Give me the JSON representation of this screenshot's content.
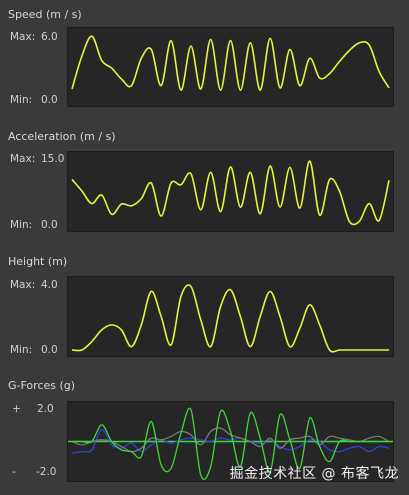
{
  "speed": {
    "title": "Speed (m / s)",
    "max_label": "Max:",
    "max_value": "6.0",
    "min_label": "Min:",
    "min_value": "0.0"
  },
  "acceleration": {
    "title": "Acceleration (m /  s)",
    "max_label": "Max:",
    "max_value": "15.0",
    "min_label": "Min:",
    "min_value": "0.0"
  },
  "height": {
    "title": "Height (m)",
    "max_label": "Max:",
    "max_value": "4.0",
    "min_label": "Min:",
    "min_value": "0.0"
  },
  "gforces": {
    "title": "G-Forces (g)",
    "plus_label": "+",
    "max_value": "2.0",
    "minus_label": "-",
    "min_value": "-2.0"
  },
  "watermark": "掘金技术社区 @ 布客飞龙",
  "colors": {
    "background": "#3a3a3a",
    "panel": "#262626",
    "line_primary": "#e6f53a",
    "gforce_green": "#3fd83a",
    "gforce_blue": "#2d43e0",
    "gforce_gray": "#7a7a7a"
  },
  "chart_data": [
    {
      "type": "line",
      "title": "Speed (m / s)",
      "ylim": [
        0,
        6.0
      ],
      "x": [
        0,
        10,
        20,
        30,
        40,
        50,
        60,
        70,
        80,
        90,
        100,
        110,
        120,
        130,
        140,
        150,
        160,
        170,
        180,
        190,
        200,
        210,
        220,
        230,
        240,
        250,
        260,
        270,
        280,
        290,
        300,
        310,
        320
      ],
      "series": [
        {
          "values": [
            1.0,
            4.0,
            5.8,
            3.6,
            2.9,
            1.9,
            1.3,
            3.8,
            4.6,
            1.3,
            5.4,
            0.9,
            4.9,
            1.0,
            5.5,
            0.9,
            5.4,
            0.9,
            5.2,
            0.9,
            5.6,
            1.1,
            4.6,
            1.3,
            3.8,
            2.0,
            2.4,
            3.5,
            4.5,
            5.2,
            5.0,
            2.6,
            1.1
          ]
        }
      ]
    },
    {
      "type": "line",
      "title": "Acceleration (m /  s)",
      "ylim": [
        0,
        15.0
      ],
      "x": [
        0,
        10,
        20,
        30,
        40,
        50,
        60,
        70,
        80,
        90,
        100,
        110,
        120,
        130,
        140,
        150,
        160,
        170,
        180,
        190,
        200,
        210,
        220,
        230,
        240,
        250,
        260,
        270,
        280,
        290,
        300,
        310,
        320
      ],
      "series": [
        {
          "values": [
            10.2,
            7.6,
            4.8,
            6.7,
            2.4,
            4.7,
            4.3,
            5.9,
            9.4,
            2.0,
            9.4,
            9.0,
            11.5,
            3.4,
            11.8,
            3.0,
            13.0,
            4.0,
            11.8,
            2.5,
            13.2,
            4.0,
            12.9,
            3.8,
            14.3,
            2.2,
            10.2,
            7.6,
            0.8,
            0.8,
            4.8,
            1.0,
            10.0
          ]
        }
      ]
    },
    {
      "type": "line",
      "title": "Height (m)",
      "ylim": [
        0,
        4.0
      ],
      "x": [
        0,
        10,
        20,
        30,
        40,
        50,
        60,
        70,
        80,
        90,
        100,
        110,
        120,
        130,
        140,
        150,
        160,
        170,
        180,
        190,
        200,
        210,
        220,
        230,
        240,
        250,
        260,
        270,
        280,
        290,
        300,
        310,
        320
      ],
      "series": [
        {
          "values": [
            0,
            0,
            0.5,
            1.2,
            1.5,
            1.2,
            0.2,
            1.5,
            3.5,
            2.0,
            0.3,
            3.2,
            3.8,
            1.8,
            0.2,
            2.6,
            3.6,
            2.0,
            0.2,
            2.0,
            3.5,
            2.0,
            0.2,
            1.3,
            2.7,
            1.5,
            0,
            0,
            0,
            0,
            0,
            0,
            0
          ]
        }
      ]
    },
    {
      "type": "line",
      "title": "G-Forces (g)",
      "ylim": [
        -2.0,
        2.0
      ],
      "x": [
        0,
        10,
        20,
        30,
        40,
        50,
        60,
        70,
        80,
        90,
        100,
        110,
        120,
        130,
        140,
        150,
        160,
        170,
        180,
        190,
        200,
        210,
        220,
        230,
        240,
        250,
        260,
        270,
        280,
        290,
        300,
        310,
        320
      ],
      "series": [
        {
          "values": [
            0,
            0,
            0,
            1.0,
            0,
            -0.5,
            -0.6,
            -0.9,
            1.2,
            -1.4,
            -1.6,
            0.5,
            1.9,
            -2.0,
            -1.5,
            1.8,
            0.6,
            -1.5,
            1.7,
            0.2,
            -1.8,
            1.6,
            0.1,
            -1.6,
            1.4,
            -0.3,
            -1.2,
            0,
            0,
            0,
            0,
            0,
            0
          ]
        },
        {
          "values": [
            -0.7,
            -0.6,
            -0.5,
            0.7,
            -0.2,
            -0.4,
            -0.1,
            -0.6,
            -0.2,
            0.1,
            -0.1,
            0.1,
            0.2,
            0.1,
            0,
            0.2,
            0.1,
            0.2,
            0.0,
            -0.1,
            0.1,
            -0.3,
            -0.5,
            -0.3,
            0.1,
            0.0,
            -0.5,
            -0.6,
            -0.4,
            -0.3,
            -0.6,
            -0.3,
            -0.4
          ]
        },
        {
          "values": [
            0,
            -0.2,
            0,
            0.1,
            0,
            -0.3,
            -0.6,
            -0.4,
            0.2,
            0.1,
            0.3,
            0.6,
            0.4,
            -0.2,
            0.6,
            0.8,
            0.4,
            0.2,
            0.0,
            -0.3,
            0.2,
            -0.4,
            0.1,
            0.2,
            0.3,
            -0.2,
            0.3,
            0.2,
            0.1,
            0.0,
            0.2,
            0.3,
            0.0
          ]
        }
      ]
    }
  ]
}
